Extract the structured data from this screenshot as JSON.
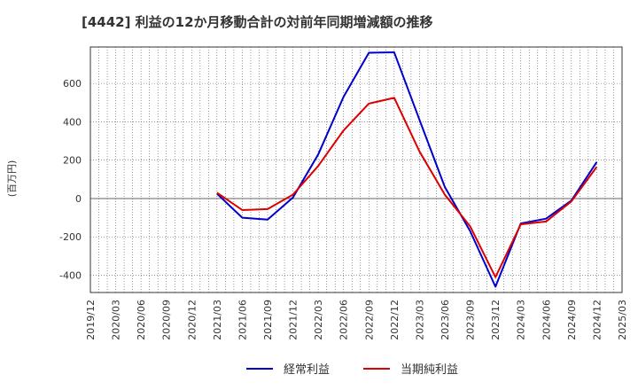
{
  "chart_data": {
    "type": "line",
    "title": "[4442]  利益の12か月移動合計の対前年同期増減額の推移",
    "ylabel": "(百万円)",
    "xlabel": "",
    "ylim": [
      -490,
      790
    ],
    "yticks": [
      -400,
      -200,
      0,
      200,
      400,
      600
    ],
    "categories": [
      "2019/12",
      "2020/03",
      "2020/06",
      "2020/09",
      "2020/12",
      "2021/03",
      "2021/06",
      "2021/09",
      "2021/12",
      "2022/03",
      "2022/06",
      "2022/09",
      "2022/12",
      "2023/03",
      "2023/06",
      "2023/09",
      "2023/12",
      "2024/03",
      "2024/06",
      "2024/09",
      "2024/12",
      "2025/03"
    ],
    "series": [
      {
        "name": "経常利益",
        "color": "#0000cc",
        "values": [
          null,
          null,
          null,
          null,
          null,
          25,
          -100,
          -110,
          5,
          230,
          530,
          760,
          762,
          410,
          60,
          -170,
          -460,
          -130,
          -105,
          -10,
          190,
          null
        ]
      },
      {
        "name": "当期純利益",
        "color": "#dd0000",
        "values": [
          null,
          null,
          null,
          null,
          null,
          30,
          -60,
          -55,
          20,
          170,
          355,
          495,
          525,
          245,
          20,
          -145,
          -410,
          -135,
          -120,
          -15,
          165,
          null
        ]
      }
    ],
    "legend_position": "bottom-center",
    "grid": true
  }
}
